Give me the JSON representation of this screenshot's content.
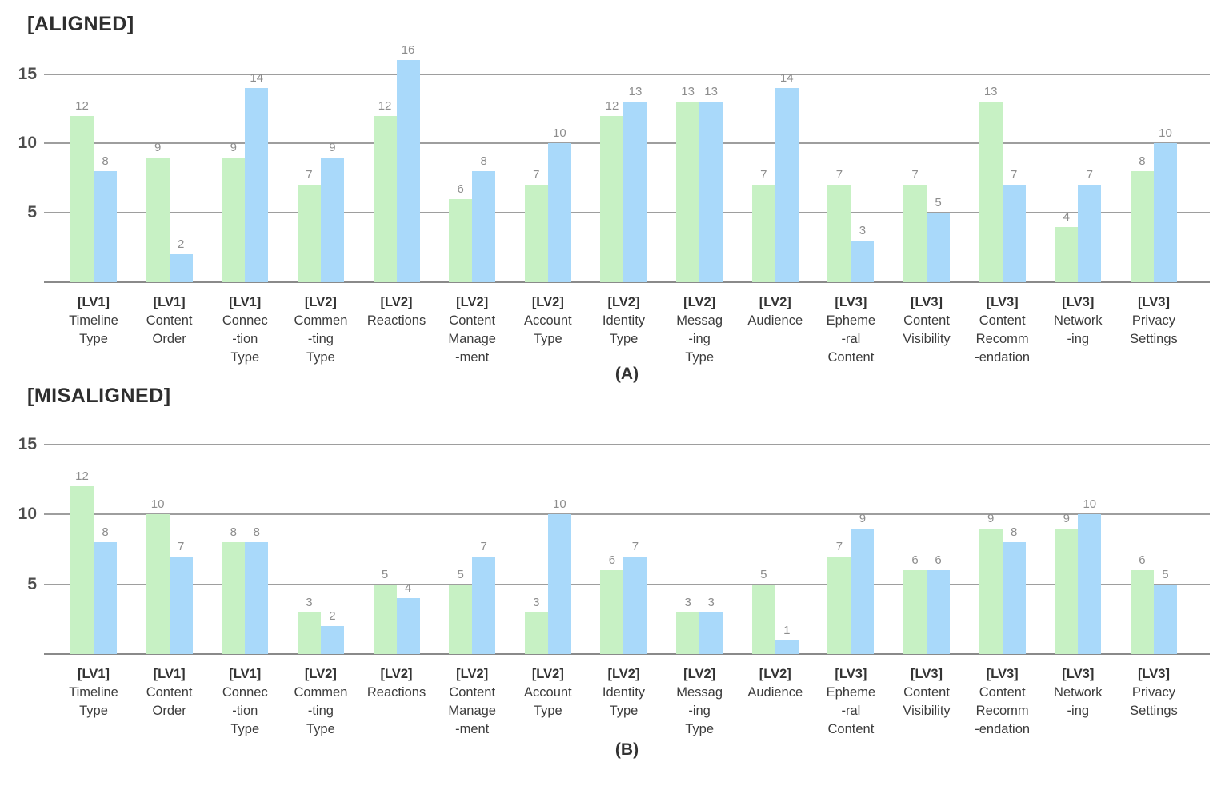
{
  "figure": {
    "background": "#ffffff",
    "grid_color": "#9e9e9e",
    "axis_color": "#8a8a8a",
    "value_label_color": "#8d8d8d"
  },
  "chart_data": [
    {
      "type": "bar",
      "title": "[ALIGNED]",
      "caption": "(A)",
      "xlabel": "",
      "ylabel": "",
      "yticks": [
        5,
        10,
        15
      ],
      "ylim": [
        0,
        17
      ],
      "grid": true,
      "legend": "none",
      "categories": [
        [
          "[LV1]",
          "Timeline",
          "Type"
        ],
        [
          "[LV1]",
          "Content",
          "Order"
        ],
        [
          "[LV1]",
          "Connec",
          "-tion",
          "Type"
        ],
        [
          "[LV2]",
          "Commen",
          "-ting",
          "Type"
        ],
        [
          "[LV2]",
          "Reactions"
        ],
        [
          "[LV2]",
          "Content",
          "Manage",
          "-ment"
        ],
        [
          "[LV2]",
          "Account",
          "Type"
        ],
        [
          "[LV2]",
          "Identity",
          "Type"
        ],
        [
          "[LV2]",
          "Messag",
          "-ing",
          "Type"
        ],
        [
          "[LV2]",
          "Audience"
        ],
        [
          "[LV3]",
          "Epheme",
          "-ral",
          "Content"
        ],
        [
          "[LV3]",
          "Content",
          "Visibility"
        ],
        [
          "[LV3]",
          "Content",
          "Recomm",
          "-endation"
        ],
        [
          "[LV3]",
          "Network",
          "-ing"
        ],
        [
          "[LV3]",
          "Privacy",
          "Settings"
        ]
      ],
      "series": [
        {
          "name": "green-series",
          "color": "#c7f1c4",
          "values": [
            12,
            9,
            9,
            7,
            12,
            6,
            7,
            12,
            13,
            7,
            7,
            7,
            13,
            4,
            8
          ]
        },
        {
          "name": "blue-series",
          "color": "#a9d9fa",
          "values": [
            8,
            2,
            14,
            9,
            16,
            8,
            10,
            13,
            13,
            14,
            3,
            5,
            7,
            7,
            10
          ]
        }
      ]
    },
    {
      "type": "bar",
      "title": "[MISALIGNED]",
      "caption": "(B)",
      "xlabel": "",
      "ylabel": "",
      "yticks": [
        5,
        10,
        15
      ],
      "ylim": [
        0,
        16
      ],
      "grid": true,
      "legend": "none",
      "categories": [
        [
          "[LV1]",
          "Timeline",
          "Type"
        ],
        [
          "[LV1]",
          "Content",
          "Order"
        ],
        [
          "[LV1]",
          "Connec",
          "-tion",
          "Type"
        ],
        [
          "[LV2]",
          "Commen",
          "-ting",
          "Type"
        ],
        [
          "[LV2]",
          "Reactions"
        ],
        [
          "[LV2]",
          "Content",
          "Manage",
          "-ment"
        ],
        [
          "[LV2]",
          "Account",
          "Type"
        ],
        [
          "[LV2]",
          "Identity",
          "Type"
        ],
        [
          "[LV2]",
          "Messag",
          "-ing",
          "Type"
        ],
        [
          "[LV2]",
          "Audience"
        ],
        [
          "[LV3]",
          "Epheme",
          "-ral",
          "Content"
        ],
        [
          "[LV3]",
          "Content",
          "Visibility"
        ],
        [
          "[LV3]",
          "Content",
          "Recomm",
          "-endation"
        ],
        [
          "[LV3]",
          "Network",
          "-ing"
        ],
        [
          "[LV3]",
          "Privacy",
          "Settings"
        ]
      ],
      "series": [
        {
          "name": "green-series",
          "color": "#c7f1c4",
          "values": [
            12,
            10,
            8,
            3,
            5,
            5,
            3,
            6,
            3,
            5,
            7,
            6,
            9,
            9,
            6
          ]
        },
        {
          "name": "blue-series",
          "color": "#a9d9fa",
          "values": [
            8,
            7,
            8,
            2,
            4,
            7,
            10,
            7,
            3,
            1,
            9,
            6,
            8,
            10,
            5
          ]
        }
      ]
    }
  ]
}
